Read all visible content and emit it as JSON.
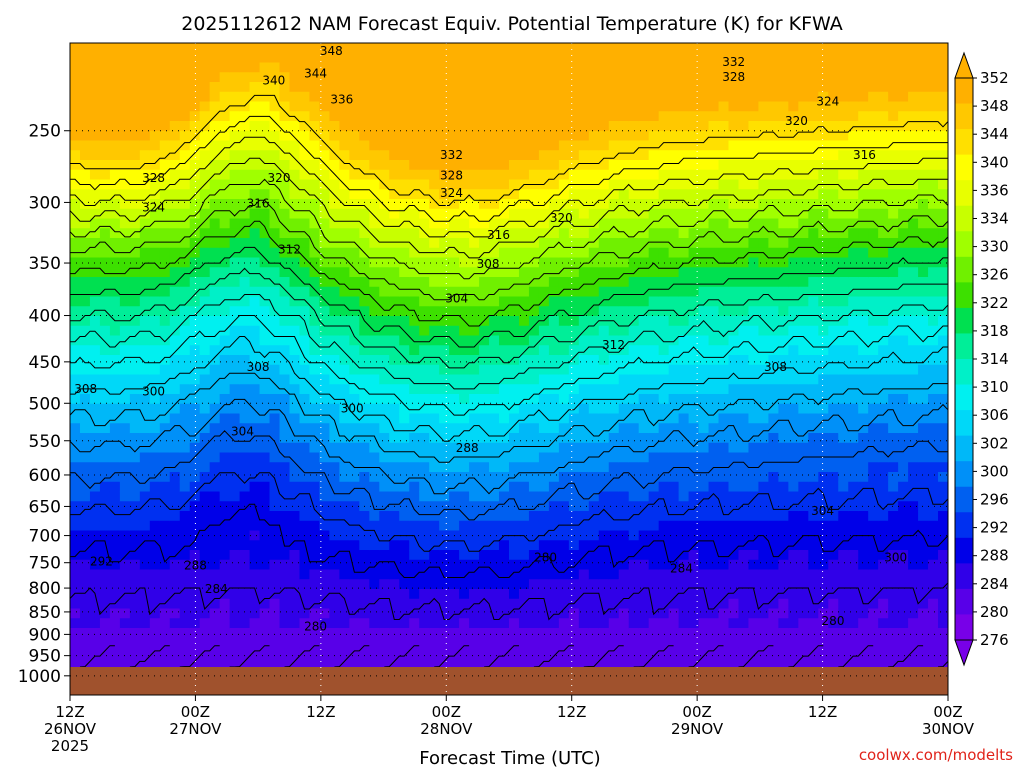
{
  "chart_data": {
    "type": "contour",
    "title": "2025112612 NAM Forecast Equiv. Potential Temperature (K) for KFWA",
    "xlabel": "Forecast Time (UTC)",
    "credit": "coolwx.com/modelts",
    "y_ticks": [
      "250",
      "300",
      "350",
      "400",
      "450",
      "500",
      "550",
      "600",
      "650",
      "700",
      "750",
      "800",
      "850",
      "900",
      "950",
      "1000"
    ],
    "y_tick_values": [
      250,
      300,
      350,
      400,
      450,
      500,
      550,
      600,
      650,
      700,
      750,
      800,
      850,
      900,
      950,
      1000
    ],
    "y_scale": "log (pressure, hPa, inverted)",
    "ylim": [
      200,
      1050
    ],
    "x_ticks": [
      {
        "hour": 0,
        "line1": "12Z",
        "line2": "26NOV",
        "line3": "2025"
      },
      {
        "hour": 12,
        "line1": "00Z",
        "line2": "27NOV",
        "line3": ""
      },
      {
        "hour": 24,
        "line1": "12Z",
        "line2": "",
        "line3": ""
      },
      {
        "hour": 36,
        "line1": "00Z",
        "line2": "28NOV",
        "line3": ""
      },
      {
        "hour": 48,
        "line1": "12Z",
        "line2": "",
        "line3": ""
      },
      {
        "hour": 60,
        "line1": "00Z",
        "line2": "29NOV",
        "line3": ""
      },
      {
        "hour": 72,
        "line1": "12Z",
        "line2": "",
        "line3": ""
      },
      {
        "hour": 84,
        "line1": "00Z",
        "line2": "30NOV",
        "line3": ""
      }
    ],
    "xlim": [
      0,
      84
    ],
    "colorbar_ticks": [
      "352",
      "348",
      "344",
      "340",
      "336",
      "334",
      "330",
      "326",
      "322",
      "318",
      "314",
      "310",
      "306",
      "302",
      "300",
      "296",
      "292",
      "288",
      "284",
      "280",
      "276"
    ],
    "colorbar_colors": [
      "#ffb000",
      "#ffc800",
      "#ffe000",
      "#ffff00",
      "#e8ff00",
      "#c8ff00",
      "#a0ff00",
      "#70f000",
      "#3de000",
      "#00e050",
      "#00ee98",
      "#00f0c8",
      "#00f0f0",
      "#00d8f8",
      "#00b8f8",
      "#0090f8",
      "#0060f0",
      "#0030f0",
      "#0000e8",
      "#3000e8",
      "#5800e8",
      "#7800e8"
    ],
    "contour_interval_K": 2,
    "grid": "dotted at x and y ticks",
    "ground_color": "#a0522d",
    "contour_labels": [
      {
        "value": "348",
        "hour": 25,
        "p": 204
      },
      {
        "value": "344",
        "hour": 23.5,
        "p": 216
      },
      {
        "value": "340",
        "hour": 19.5,
        "p": 220
      },
      {
        "value": "336",
        "hour": 26,
        "p": 231
      },
      {
        "value": "332",
        "hour": 63.5,
        "p": 210
      },
      {
        "value": "328",
        "hour": 63.5,
        "p": 218
      },
      {
        "value": "324",
        "hour": 72.5,
        "p": 232
      },
      {
        "value": "320",
        "hour": 69.5,
        "p": 244
      },
      {
        "value": "316",
        "hour": 76,
        "p": 266
      },
      {
        "value": "332",
        "hour": 36.5,
        "p": 266
      },
      {
        "value": "328",
        "hour": 36.5,
        "p": 280
      },
      {
        "value": "324",
        "hour": 36.5,
        "p": 293
      },
      {
        "value": "320",
        "hour": 47,
        "p": 312
      },
      {
        "value": "316",
        "hour": 41,
        "p": 326
      },
      {
        "value": "328",
        "hour": 8,
        "p": 282
      },
      {
        "value": "324",
        "hour": 8,
        "p": 304
      },
      {
        "value": "320",
        "hour": 20,
        "p": 282
      },
      {
        "value": "316",
        "hour": 18,
        "p": 301
      },
      {
        "value": "312",
        "hour": 21,
        "p": 338
      },
      {
        "value": "308",
        "hour": 40,
        "p": 351
      },
      {
        "value": "304",
        "hour": 37,
        "p": 383
      },
      {
        "value": "312",
        "hour": 52,
        "p": 431
      },
      {
        "value": "308",
        "hour": 18,
        "p": 456
      },
      {
        "value": "308",
        "hour": 1.5,
        "p": 482
      },
      {
        "value": "300",
        "hour": 8,
        "p": 485
      },
      {
        "value": "304",
        "hour": 16.5,
        "p": 537
      },
      {
        "value": "300",
        "hour": 27,
        "p": 507
      },
      {
        "value": "308",
        "hour": 67.5,
        "p": 456
      },
      {
        "value": "288",
        "hour": 38,
        "p": 560
      },
      {
        "value": "304",
        "hour": 72,
        "p": 658
      },
      {
        "value": "300",
        "hour": 79,
        "p": 740
      },
      {
        "value": "292",
        "hour": 3,
        "p": 748
      },
      {
        "value": "288",
        "hour": 12,
        "p": 755
      },
      {
        "value": "284",
        "hour": 14,
        "p": 802
      },
      {
        "value": "280",
        "hour": 45.5,
        "p": 740
      },
      {
        "value": "284",
        "hour": 58.5,
        "p": 761
      },
      {
        "value": "280",
        "hour": 23.5,
        "p": 882
      },
      {
        "value": "280",
        "hour": 73,
        "p": 870
      }
    ]
  }
}
